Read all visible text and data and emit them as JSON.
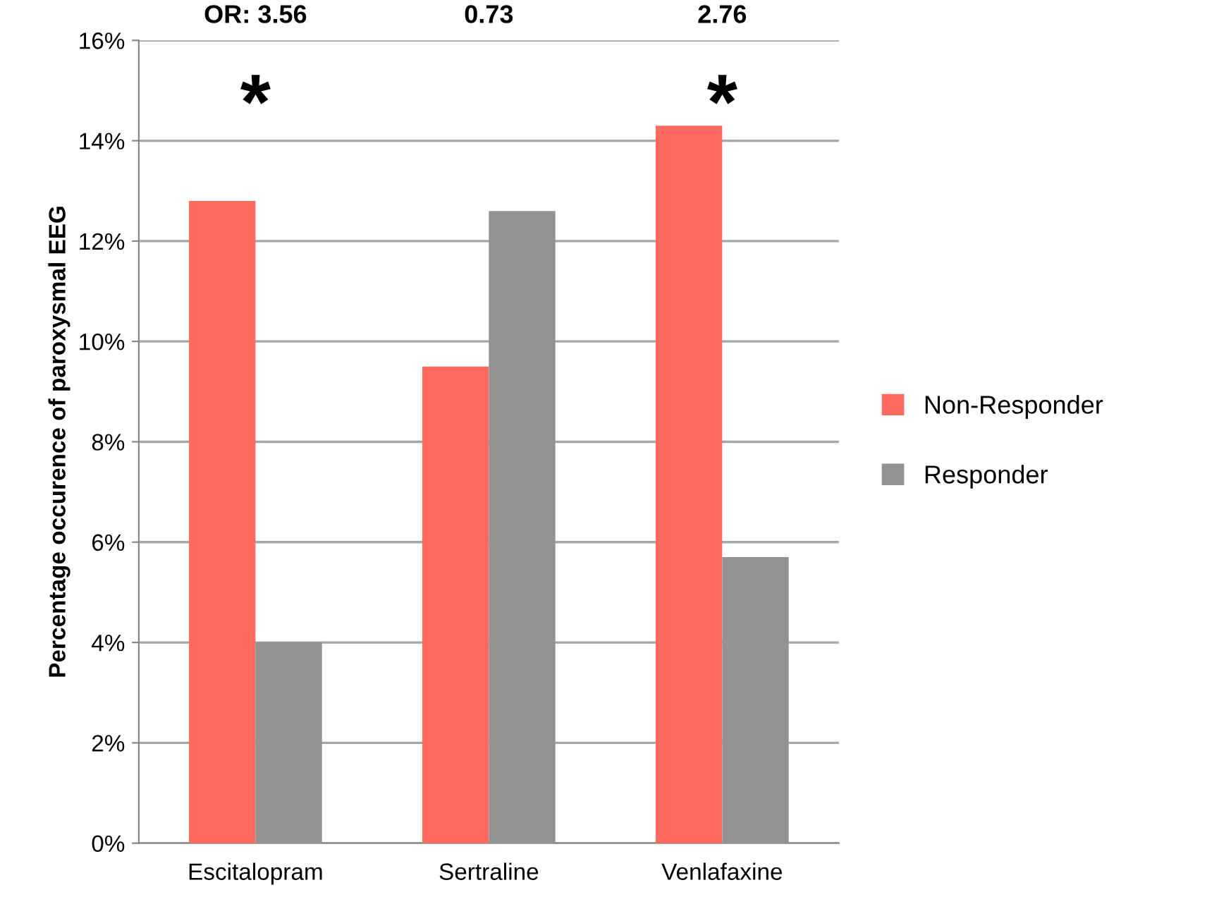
{
  "chart_data": {
    "type": "bar",
    "ylabel": "Percentage occurence of paroxysmal EEG",
    "categories": [
      "Escitalopram",
      "Sertraline",
      "Venlafaxine"
    ],
    "series": [
      {
        "name": "Non-Responder",
        "color": "#fe6a60",
        "values": [
          12.8,
          9.5,
          14.3
        ]
      },
      {
        "name": "Responder",
        "color": "#929292",
        "values": [
          4.0,
          12.6,
          5.7
        ]
      }
    ],
    "ylim": [
      0,
      16
    ],
    "yticks": [
      {
        "value": 0,
        "label": "0%"
      },
      {
        "value": 2,
        "label": "2%"
      },
      {
        "value": 4,
        "label": "4%"
      },
      {
        "value": 6,
        "label": "6%"
      },
      {
        "value": 8,
        "label": "8%"
      },
      {
        "value": 10,
        "label": "10%"
      },
      {
        "value": 12,
        "label": "12%"
      },
      {
        "value": 14,
        "label": "14%"
      },
      {
        "value": 16,
        "label": "16%"
      }
    ],
    "grid": "y",
    "legend": "right",
    "annotations": [
      "OR: 3.56",
      "0.73",
      "2.76",
      "*",
      "*"
    ]
  }
}
